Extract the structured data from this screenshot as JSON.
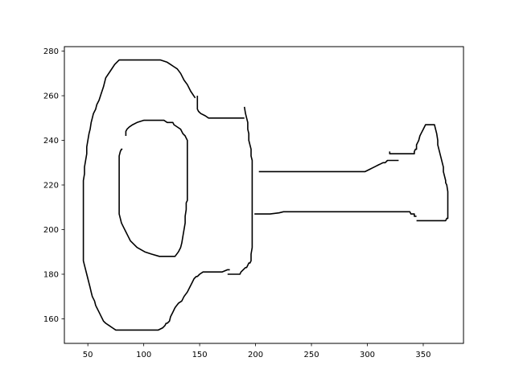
{
  "chart_data": {
    "type": "line",
    "title": "",
    "xlabel": "",
    "ylabel": "",
    "xlim": [
      29,
      386
    ],
    "ylim": [
      149,
      282
    ],
    "xticks": [
      50,
      100,
      150,
      200,
      250,
      300,
      350
    ],
    "yticks": [
      160,
      180,
      200,
      220,
      240,
      260,
      280
    ],
    "grid": false,
    "line_color": "#000000",
    "series": [
      {
        "x": [
          146,
          142,
          139,
          136,
          133,
          130,
          127,
          124,
          121,
          118,
          115,
          112,
          103,
          94,
          85,
          82,
          78,
          74,
          70,
          66,
          64,
          62,
          60,
          58,
          57,
          55,
          54,
          53,
          52,
          51,
          50,
          49,
          49,
          48,
          47,
          47,
          46,
          46,
          46,
          46,
          46,
          46,
          46,
          46,
          46,
          46,
          46,
          46,
          46,
          46,
          47,
          48,
          49,
          50,
          51,
          52,
          53,
          54,
          56,
          57,
          58,
          60,
          62,
          64,
          66,
          69,
          72,
          75,
          78,
          81,
          86,
          95,
          104,
          113,
          117,
          119,
          120,
          121,
          123,
          124,
          126,
          128,
          131,
          134,
          136,
          139,
          141,
          143,
          145,
          147,
          148,
          150,
          153,
          156,
          160,
          166,
          170,
          175,
          177
        ],
        "y": [
          259,
          262,
          265,
          267,
          270,
          272,
          273,
          274,
          275,
          275.5,
          276,
          276,
          276,
          276,
          276,
          276,
          276,
          274,
          271,
          268,
          264,
          261,
          258,
          256,
          254,
          252,
          250,
          248,
          245,
          243,
          240,
          237,
          234,
          231,
          228,
          225,
          222,
          219,
          216,
          213,
          210,
          207,
          204,
          201,
          198,
          195,
          192,
          189,
          188,
          186,
          184,
          182,
          180,
          178,
          176,
          174,
          172,
          170,
          168,
          166,
          165,
          163,
          161,
          159,
          158,
          157,
          156,
          155,
          155,
          155,
          155,
          155,
          155,
          155,
          156,
          157,
          158,
          158,
          159,
          161,
          163,
          165,
          167,
          168,
          170,
          172,
          174,
          176,
          178,
          179,
          179,
          180,
          181,
          181,
          181,
          181,
          181,
          182,
          182
        ]
      },
      {
        "x": [
          148,
          148,
          148,
          149,
          151,
          155,
          158,
          162,
          171,
          181,
          190
        ],
        "y": [
          260,
          256,
          254,
          253,
          252,
          251,
          250,
          250,
          250,
          250,
          250
        ]
      },
      {
        "x": [
          190,
          191,
          192,
          193,
          193,
          194,
          194,
          195,
          196,
          196,
          197,
          197,
          197,
          197,
          197,
          197,
          197,
          197,
          197,
          197,
          197,
          197,
          197,
          197,
          196,
          196,
          195,
          194,
          193,
          192,
          191,
          189,
          187,
          186,
          183,
          181,
          179,
          177,
          175
        ],
        "y": [
          255,
          252,
          250,
          248,
          245,
          243,
          240,
          238,
          236,
          233,
          231,
          228,
          225,
          222,
          219,
          216,
          213,
          210,
          207,
          204,
          201,
          198,
          195,
          192,
          189,
          186,
          185,
          185,
          184,
          183,
          183,
          182,
          181,
          180,
          180,
          180,
          180,
          180,
          180
        ]
      },
      {
        "x": [
          84,
          84,
          85,
          87,
          90,
          94,
          100,
          108,
          118,
          121,
          124,
          126,
          127,
          130,
          133,
          135,
          137,
          138,
          139,
          139,
          139,
          139,
          139,
          139,
          139,
          139,
          139,
          139,
          138,
          138,
          137,
          137,
          136,
          135,
          134,
          133,
          131,
          128,
          124,
          119,
          114,
          107,
          101,
          94,
          90,
          88,
          86,
          84,
          82,
          80,
          79,
          78,
          78,
          78,
          78,
          78,
          78,
          78,
          78,
          78,
          78,
          79,
          80,
          81
        ],
        "y": [
          242,
          244,
          245,
          246,
          247,
          248,
          249,
          249,
          249,
          248,
          248,
          248,
          247,
          246,
          245,
          243,
          242,
          241,
          240,
          237,
          234,
          231,
          228,
          225,
          222,
          219,
          216,
          213,
          212,
          209,
          206,
          203,
          200,
          197,
          194,
          192,
          190,
          188,
          188,
          188,
          188,
          189,
          190,
          192,
          194,
          195,
          197,
          199,
          201,
          203,
          205,
          207,
          210,
          213,
          216,
          219,
          222,
          225,
          228,
          231,
          233,
          235,
          236,
          236
        ]
      },
      {
        "x": [
          203,
          213,
          223,
          233,
          243,
          253,
          263,
          273,
          283,
          293,
          298,
          300,
          302,
          304,
          306,
          308,
          310,
          312,
          314,
          316,
          318,
          322,
          325,
          328
        ],
        "y": [
          226,
          226,
          226,
          226,
          226,
          226,
          226,
          226,
          226,
          226,
          226,
          226.5,
          227,
          227.5,
          228,
          228.5,
          229,
          229.5,
          230,
          230,
          231,
          231,
          231,
          231
        ]
      },
      {
        "x": [
          199,
          203,
          213,
          221,
          225,
          235,
          245,
          255,
          265,
          275,
          285,
          295,
          305,
          315,
          325,
          335,
          338,
          339,
          342,
          342,
          344
        ],
        "y": [
          207,
          207,
          207,
          207.5,
          208,
          208,
          208,
          208,
          208,
          208,
          208,
          208,
          208,
          208,
          208,
          208,
          208,
          207,
          207,
          206,
          206
        ]
      },
      {
        "x": [
          320,
          320,
          322,
          325,
          328,
          331,
          334,
          337,
          340,
          342,
          342,
          343,
          344,
          344,
          345,
          346,
          347,
          348,
          350,
          352,
          354,
          356,
          358,
          360,
          361,
          362,
          363,
          363,
          364,
          365,
          366,
          367,
          368,
          368,
          369,
          370,
          370,
          371,
          372,
          372,
          372,
          372,
          372,
          372,
          372,
          371,
          370,
          369,
          367,
          365,
          362,
          359,
          356,
          353,
          350,
          347,
          344
        ],
        "y": [
          235,
          234,
          234,
          234,
          234,
          234,
          234,
          234,
          234,
          234,
          235,
          236,
          236,
          238,
          239,
          240,
          242,
          243,
          245,
          247,
          247,
          247,
          247,
          247,
          245,
          243,
          240,
          238,
          236,
          234,
          232,
          230,
          228,
          226,
          224,
          222,
          221,
          220,
          217,
          214,
          211,
          208,
          206,
          206,
          205,
          205,
          204,
          204,
          204,
          204,
          204,
          204,
          204,
          204,
          204,
          204,
          204
        ]
      }
    ]
  }
}
